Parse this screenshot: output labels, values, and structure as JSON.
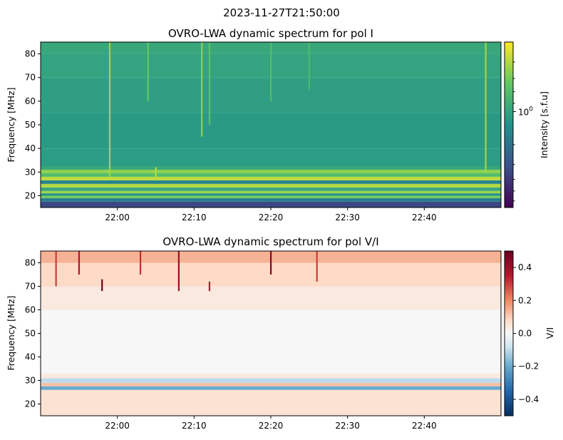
{
  "figure": {
    "suptitle": "2023-11-27T21:50:00"
  },
  "chart_data": [
    {
      "type": "heatmap",
      "title": "OVRO-LWA dynamic spectrum for pol I",
      "xlabel": "",
      "ylabel": "Frequency [MHz]",
      "x_range": [
        "21:50",
        "22:50"
      ],
      "ylim": [
        15,
        85
      ],
      "x_ticks": [
        "22:00",
        "22:10",
        "22:20",
        "22:30",
        "22:40"
      ],
      "y_ticks": [
        20,
        30,
        40,
        50,
        60,
        70,
        80
      ],
      "colormap": "viridis",
      "colorbar": {
        "label": "Intensity [s.f.u]",
        "scale": "log",
        "tick_base": "10",
        "tick_exp": "0",
        "tick_value": 1
      },
      "bands": [
        {
          "y0": 15,
          "y1": 17.5,
          "level": 0.22
        },
        {
          "y0": 17.5,
          "y1": 19,
          "level": 0.42
        },
        {
          "y0": 19,
          "y1": 20,
          "level": 0.78
        },
        {
          "y0": 20,
          "y1": 21,
          "level": 0.5
        },
        {
          "y0": 21,
          "y1": 22,
          "level": 0.85
        },
        {
          "y0": 22,
          "y1": 23.5,
          "level": 0.6
        },
        {
          "y0": 23.5,
          "y1": 25,
          "level": 0.88
        },
        {
          "y0": 25,
          "y1": 26.5,
          "level": 0.45
        },
        {
          "y0": 26.5,
          "y1": 28,
          "level": 0.9
        },
        {
          "y0": 28,
          "y1": 29.5,
          "level": 0.7
        },
        {
          "y0": 29.5,
          "y1": 31,
          "level": 0.82
        },
        {
          "y0": 31,
          "y1": 32.5,
          "level": 0.6
        },
        {
          "y0": 32.5,
          "y1": 40,
          "level": 0.55
        },
        {
          "y0": 40,
          "y1": 55,
          "level": 0.54
        },
        {
          "y0": 55,
          "y1": 70,
          "level": 0.56
        },
        {
          "y0": 70,
          "y1": 80,
          "level": 0.58
        },
        {
          "y0": 80,
          "y1": 85,
          "level": 0.6
        }
      ],
      "streaks": [
        {
          "t": "21:59",
          "y0": 28,
          "y1": 85,
          "level": 0.85
        },
        {
          "t": "22:04",
          "y0": 60,
          "y1": 85,
          "level": 0.75
        },
        {
          "t": "22:05",
          "y0": 27,
          "y1": 32,
          "level": 0.9
        },
        {
          "t": "22:11",
          "y0": 45,
          "y1": 85,
          "level": 0.82
        },
        {
          "t": "22:12",
          "y0": 50,
          "y1": 85,
          "level": 0.72
        },
        {
          "t": "22:20",
          "y0": 60,
          "y1": 85,
          "level": 0.7
        },
        {
          "t": "22:25",
          "y0": 65,
          "y1": 85,
          "level": 0.68
        },
        {
          "t": "22:48",
          "y0": 30,
          "y1": 85,
          "level": 0.85
        }
      ]
    },
    {
      "type": "heatmap",
      "title": "OVRO-LWA dynamic spectrum for pol V/I",
      "xlabel": "",
      "ylabel": "Frequency [MHz]",
      "x_range": [
        "21:50",
        "22:50"
      ],
      "ylim": [
        15,
        85
      ],
      "x_ticks": [
        "22:00",
        "22:10",
        "22:20",
        "22:30",
        "22:40"
      ],
      "y_ticks": [
        20,
        30,
        40,
        50,
        60,
        70,
        80
      ],
      "colormap": "RdBu_r",
      "colorbar": {
        "label": "V/I",
        "vmin": -0.5,
        "vmax": 0.5,
        "ticks": [
          "−0.4",
          "−0.2",
          "0.0",
          "0.2",
          "0.4"
        ],
        "tick_values": [
          -0.4,
          -0.2,
          0.0,
          0.2,
          0.4
        ]
      },
      "bands": [
        {
          "y0": 15,
          "y1": 26,
          "level": 0.06
        },
        {
          "y0": 26,
          "y1": 27.5,
          "level": -0.2
        },
        {
          "y0": 27.5,
          "y1": 29,
          "level": 0.12
        },
        {
          "y0": 29,
          "y1": 31,
          "level": -0.1
        },
        {
          "y0": 31,
          "y1": 33,
          "level": 0.04
        },
        {
          "y0": 33,
          "y1": 60,
          "level": 0.0
        },
        {
          "y0": 60,
          "y1": 70,
          "level": 0.04
        },
        {
          "y0": 70,
          "y1": 80,
          "level": 0.08
        },
        {
          "y0": 80,
          "y1": 85,
          "level": 0.14
        }
      ],
      "streaks": [
        {
          "t": "21:52",
          "y0": 70,
          "y1": 85,
          "level": 0.3
        },
        {
          "t": "21:55",
          "y0": 75,
          "y1": 85,
          "level": 0.35
        },
        {
          "t": "21:58",
          "y0": 68,
          "y1": 73,
          "level": 0.48
        },
        {
          "t": "22:03",
          "y0": 75,
          "y1": 85,
          "level": 0.32
        },
        {
          "t": "22:08",
          "y0": 68,
          "y1": 85,
          "level": 0.4
        },
        {
          "t": "22:12",
          "y0": 68,
          "y1": 72,
          "level": 0.35
        },
        {
          "t": "22:20",
          "y0": 75,
          "y1": 85,
          "level": 0.45
        },
        {
          "t": "22:26",
          "y0": 72,
          "y1": 85,
          "level": 0.3
        }
      ]
    }
  ]
}
